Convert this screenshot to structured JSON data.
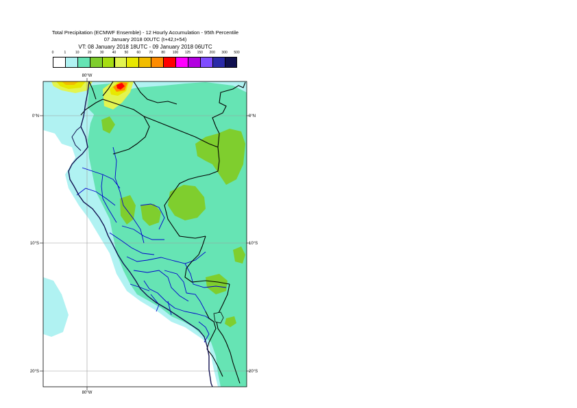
{
  "title": {
    "line1": "Total Precipitation (ECMWF Ensemble) - 12 Hourly Accumulation - 95th Percentile",
    "line2": "07 January 2018 00UTC (t+42,t+54)",
    "line3": "VT: 08 January 2018 18UTC - 09 January 2018 06UTC"
  },
  "legend": {
    "thresholds": [
      "0",
      "1",
      "10",
      "20",
      "30",
      "40",
      "50",
      "60",
      "70",
      "80",
      "100",
      "125",
      "150",
      "200",
      "300",
      "500"
    ],
    "colors": [
      "#ffffff",
      "#b0f2f2",
      "#66e4b4",
      "#7fce2e",
      "#a6dd12",
      "#e2f450",
      "#e8e800",
      "#f2bd00",
      "#ff8c00",
      "#ff0000",
      "#ff00ff",
      "#b200e0",
      "#7f4cff",
      "#2a2aa8",
      "#101050"
    ]
  },
  "axes": {
    "lon_top": "80°W",
    "lon_bottom": "80°W",
    "lat_labels": [
      "0°N",
      "10°S",
      "20°S"
    ]
  }
}
